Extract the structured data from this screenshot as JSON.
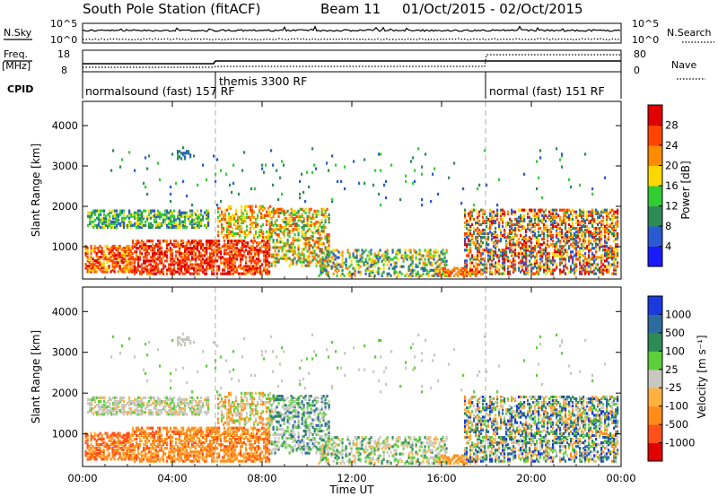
{
  "header": {
    "station": "South Pole Station (fitACF)",
    "beam": "Beam 11",
    "dates": "01/Oct/2015 - 02/Oct/2015"
  },
  "params": {
    "nsky_label": "N.Sky",
    "nsearch_label": "N.Search",
    "nsky_ticks": [
      "10^5",
      "10^0"
    ],
    "nsearch_ticks": [
      "10^5",
      "10^0"
    ],
    "freq_label": "Freq.",
    "freq_unit": "[MHz]",
    "freq_ticks": [
      "18",
      "8"
    ],
    "nave_label": "Nave",
    "nave_ticks": [
      "80",
      "0"
    ],
    "cpid_label": "CPID",
    "cpid_segments": [
      {
        "text": "normalsound (fast) 157 RF"
      },
      {
        "text": "themis 3300 RF"
      },
      {
        "text": "normal (fast) 151 RF"
      }
    ]
  },
  "chart_data": [
    {
      "type": "heatmap",
      "name": "power",
      "ylabel": "Slant Range [km]",
      "y_ticks": [
        "1000",
        "2000",
        "3000",
        "4000"
      ],
      "ylim": [
        200,
        4600
      ],
      "x_ticks": [
        "00:00",
        "04:00",
        "08:00",
        "12:00",
        "16:00",
        "20:00",
        "00:00"
      ],
      "xlim_hours": [
        0,
        24
      ],
      "colorbar_label": "Power [dB]",
      "colorbar_ticks": [
        "4",
        "8",
        "12",
        "16",
        "20",
        "24",
        "28"
      ],
      "colorbar_colors": [
        "#1a1aff",
        "#2a5ad0",
        "#2e8b57",
        "#32cd32",
        "#ffd700",
        "#ff8c00",
        "#ff4500",
        "#e00000"
      ]
    },
    {
      "type": "heatmap",
      "name": "velocity",
      "ylabel": "Slant Range [km]",
      "y_ticks": [
        "1000",
        "2000",
        "3000",
        "4000"
      ],
      "ylim": [
        200,
        4600
      ],
      "x_ticks": [
        "00:00",
        "04:00",
        "08:00",
        "12:00",
        "16:00",
        "20:00",
        "00:00"
      ],
      "xlabel": "Time UT",
      "xlim_hours": [
        0,
        24
      ],
      "colorbar_label": "Velocity [m s⁻¹]",
      "colorbar_ticks": [
        "1000",
        "500",
        "100",
        "25",
        "-25",
        "-100",
        "-500",
        "-1000"
      ],
      "colorbar_colors": [
        "#1a3adf",
        "#2e6b9e",
        "#2e8b57",
        "#5ccf3a",
        "#c8c8c0",
        "#ffb23f",
        "#ff8c1a",
        "#ff4f1a",
        "#e00000"
      ]
    }
  ]
}
